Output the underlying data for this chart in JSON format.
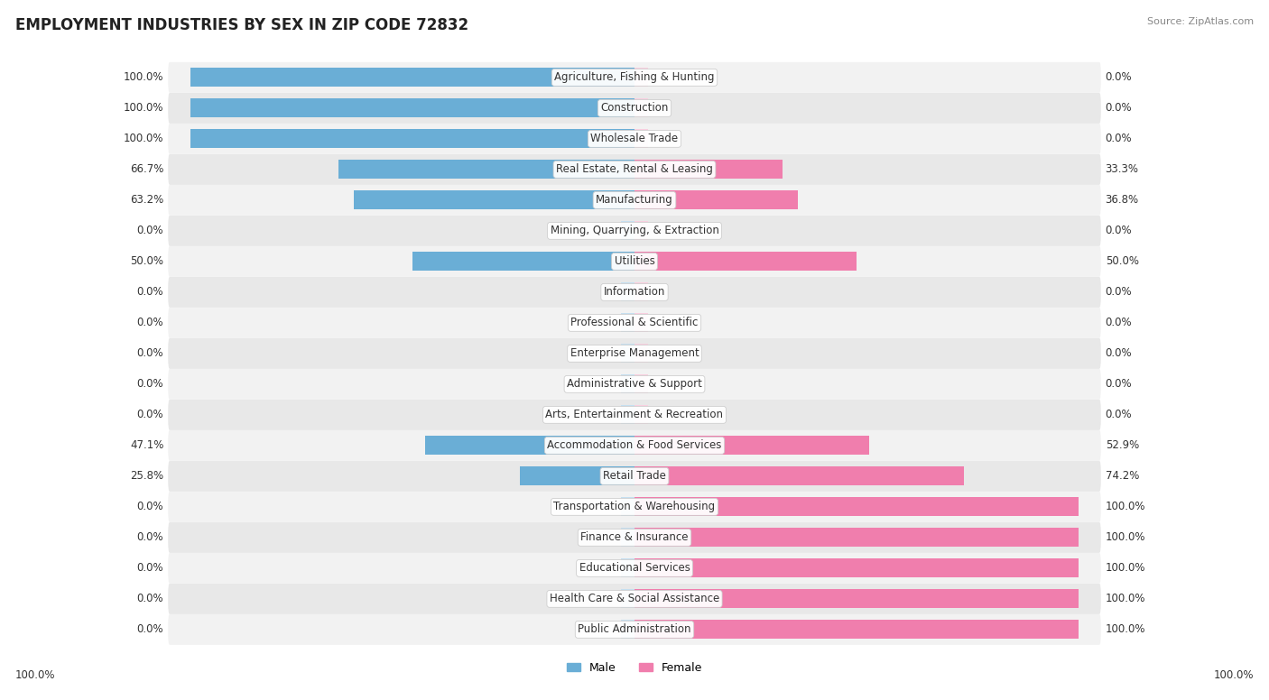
{
  "title": "EMPLOYMENT INDUSTRIES BY SEX IN ZIP CODE 72832",
  "source": "Source: ZipAtlas.com",
  "industries": [
    "Agriculture, Fishing & Hunting",
    "Construction",
    "Wholesale Trade",
    "Real Estate, Rental & Leasing",
    "Manufacturing",
    "Mining, Quarrying, & Extraction",
    "Utilities",
    "Information",
    "Professional & Scientific",
    "Enterprise Management",
    "Administrative & Support",
    "Arts, Entertainment & Recreation",
    "Accommodation & Food Services",
    "Retail Trade",
    "Transportation & Warehousing",
    "Finance & Insurance",
    "Educational Services",
    "Health Care & Social Assistance",
    "Public Administration"
  ],
  "male_pct": [
    100.0,
    100.0,
    100.0,
    66.7,
    63.2,
    0.0,
    50.0,
    0.0,
    0.0,
    0.0,
    0.0,
    0.0,
    47.1,
    25.8,
    0.0,
    0.0,
    0.0,
    0.0,
    0.0
  ],
  "female_pct": [
    0.0,
    0.0,
    0.0,
    33.3,
    36.8,
    0.0,
    50.0,
    0.0,
    0.0,
    0.0,
    0.0,
    0.0,
    52.9,
    74.2,
    100.0,
    100.0,
    100.0,
    100.0,
    100.0
  ],
  "male_color": "#6aaed6",
  "female_color": "#f07ead",
  "male_color_light": "#c5dff0",
  "female_color_light": "#f9cfe0",
  "bg_color": "#ffffff",
  "row_colors": [
    "#f2f2f2",
    "#e8e8e8"
  ],
  "title_fontsize": 12,
  "label_fontsize": 8.5,
  "bar_label_fontsize": 8.5,
  "bar_height": 0.62
}
